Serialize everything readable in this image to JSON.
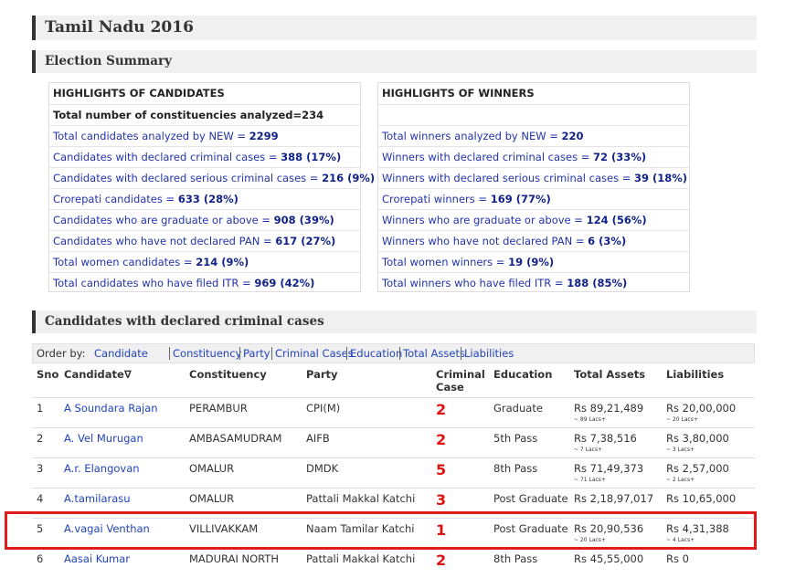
{
  "header": {
    "title": "Tamil Nadu 2016"
  },
  "summary": {
    "title": "Election Summary",
    "candidates": {
      "title": "HIGHLIGHTS OF CANDIDATES",
      "intro": "Total number of constituencies analyzed=234",
      "rows": [
        {
          "label": "Total candidates analyzed by NEW =",
          "value": "2299"
        },
        {
          "label": "Candidates with declared criminal cases =",
          "value": "388 (17%)"
        },
        {
          "label": "Candidates with declared serious criminal cases =",
          "value": "216 (9%)"
        },
        {
          "label": "Crorepati candidates =",
          "value": "633 (28%)"
        },
        {
          "label": "Candidates who are graduate or above =",
          "value": "908 (39%)"
        },
        {
          "label": "Candidates who have not declared PAN =",
          "value": "617 (27%)"
        },
        {
          "label": "Total women candidates =",
          "value": "214 (9%)"
        },
        {
          "label": "Total candidates who have filed ITR =",
          "value": "969 (42%)"
        }
      ]
    },
    "winners": {
      "title": "HIGHLIGHTS OF WINNERS",
      "rows": [
        {
          "label": "Total winners analyzed by NEW =",
          "value": "220"
        },
        {
          "label": "Winners with declared criminal cases =",
          "value": "72 (33%)"
        },
        {
          "label": "Winners with declared serious criminal cases =",
          "value": "39 (18%)"
        },
        {
          "label": "Crorepati winners =",
          "value": "169 (77%)"
        },
        {
          "label": "Winners who are graduate or above =",
          "value": "124 (56%)"
        },
        {
          "label": "Winners who have not declared PAN =",
          "value": "6 (3%)"
        },
        {
          "label": "Total women winners =",
          "value": "19 (9%)"
        },
        {
          "label": "Total winners who have filed ITR =",
          "value": "188 (85%)"
        }
      ]
    }
  },
  "criminal": {
    "title": "Candidates with declared criminal cases",
    "order_label": "Order by:",
    "order_links": [
      "Candidate",
      "Constituency",
      "Party",
      "Criminal Cases",
      "Education",
      "Total Assets",
      "Liabilities"
    ],
    "table": {
      "headers": [
        "Sno",
        "Candidate∇",
        "Constituency",
        "Party",
        "Criminal Case",
        "Education",
        "Total Assets",
        "Liabilities"
      ],
      "rows": [
        {
          "sno": "1",
          "candidate": "A Soundara Rajan",
          "constituency": "PERAMBUR",
          "party": "CPI(M)",
          "cases": "2",
          "education": "Graduate",
          "assets": "Rs 89,21,489",
          "assets_note": "~ 89 Lacs+",
          "liabilities": "Rs 20,00,000",
          "liabilities_note": "~ 20 Lacs+"
        },
        {
          "sno": "2",
          "candidate": "A. Vel Murugan",
          "constituency": "AMBASAMUDRAM",
          "party": "AIFB",
          "cases": "2",
          "education": "5th Pass",
          "assets": "Rs 7,38,516",
          "assets_note": "~ 7 Lacs+",
          "liabilities": "Rs 3,80,000",
          "liabilities_note": "~ 3 Lacs+"
        },
        {
          "sno": "3",
          "candidate": "A.r. Elangovan",
          "constituency": "OMALUR",
          "party": "DMDK",
          "cases": "5",
          "education": "8th Pass",
          "assets": "Rs 71,49,373",
          "assets_note": "~ 71 Lacs+",
          "liabilities": "Rs 2,57,000",
          "liabilities_note": "~ 2 Lacs+"
        },
        {
          "sno": "4",
          "candidate": "A.tamilarasu",
          "constituency": "OMALUR",
          "party": "Pattali Makkal Katchi",
          "cases": "3",
          "education": "Post Graduate",
          "assets": "Rs 2,18,97,017",
          "liabilities": "Rs 10,65,000"
        },
        {
          "sno": "5",
          "candidate": "A.vagai Venthan",
          "constituency": "VILLIVAKKAM",
          "party": "Naam Tamilar Katchi",
          "cases": "1",
          "education": "Post Graduate",
          "assets": "Rs 20,90,536",
          "assets_note": "~ 20 Lacs+",
          "liabilities": "Rs 4,31,388",
          "liabilities_note": "~ 4 Lacs+"
        },
        {
          "sno": "6",
          "candidate": "Aasai Kumar",
          "constituency": "MADURAI NORTH",
          "party": "Pattali Makkal Katchi",
          "cases": "2",
          "education": "8th Pass",
          "assets": "Rs 45,55,000",
          "liabilities": "Rs 0"
        }
      ]
    }
  }
}
